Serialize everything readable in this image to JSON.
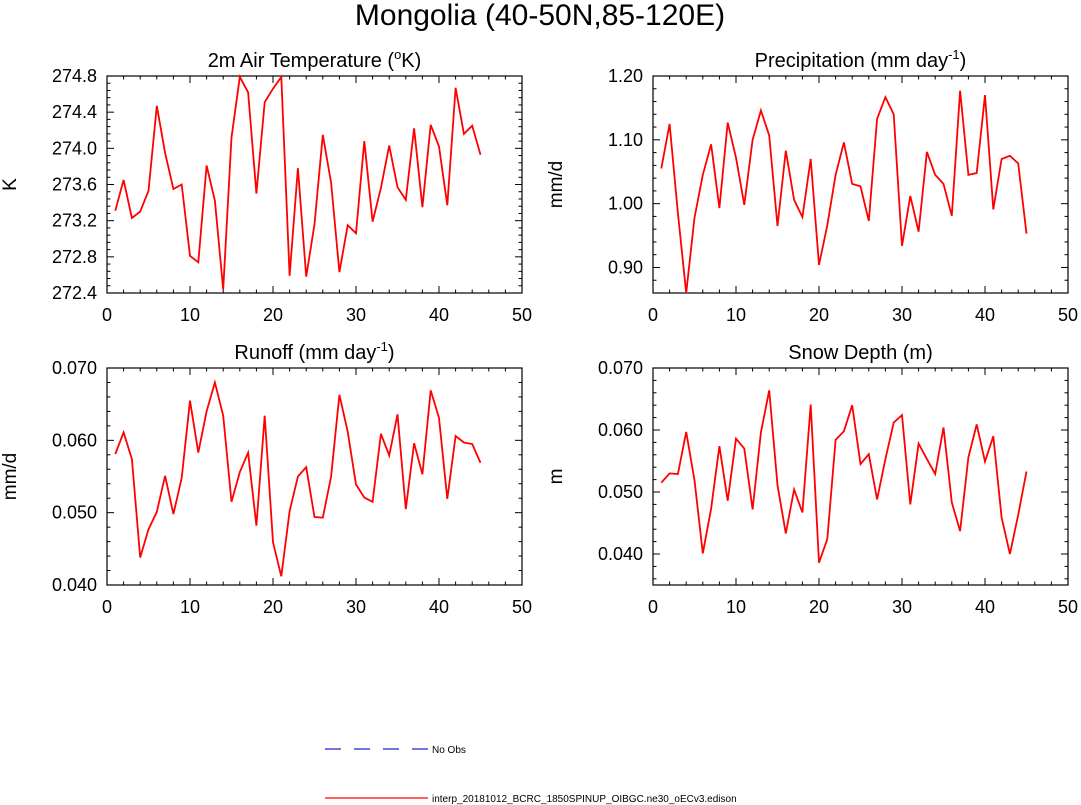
{
  "title": "Mongolia (40-50N,85-120E)",
  "legend": [
    {
      "label": "No Obs",
      "color": "#2020d0",
      "style": "dashed"
    },
    {
      "label": "interp_20181012_BCRC_1850SPINUP_OIBGC.ne30_oECv3.edison",
      "color": "#ff0000",
      "style": "solid"
    }
  ],
  "chart_data": [
    {
      "type": "line",
      "title": "2m Air Temperature (",
      "title_sup": "o",
      "title_tail": "K)",
      "ylabel": "K",
      "xlim": [
        0,
        50
      ],
      "ylim": [
        272.4,
        274.8
      ],
      "xticks": [
        0,
        10,
        20,
        30,
        40,
        50
      ],
      "yticks": [
        272.4,
        272.8,
        273.2,
        273.6,
        274.0,
        274.4,
        274.8
      ],
      "ytick_labels": [
        "272.4",
        "272.8",
        "273.2",
        "273.6",
        "274.0",
        "274.4",
        "274.8"
      ],
      "color": "#ff0000",
      "x": [
        1,
        2,
        3,
        4,
        5,
        6,
        7,
        8,
        9,
        10,
        11,
        12,
        13,
        14,
        15,
        16,
        17,
        18,
        19,
        20,
        21,
        22,
        23,
        24,
        25,
        26,
        27,
        28,
        29,
        30,
        31,
        32,
        33,
        34,
        35,
        36,
        37,
        38,
        39,
        40,
        41,
        42,
        43,
        44,
        45
      ],
      "y": [
        273.31,
        273.65,
        273.23,
        273.3,
        273.53,
        274.47,
        273.95,
        273.55,
        273.6,
        272.81,
        272.74,
        273.81,
        273.42,
        272.44,
        274.12,
        274.79,
        274.62,
        273.5,
        274.51,
        274.66,
        274.79,
        272.59,
        273.78,
        272.58,
        273.16,
        274.15,
        273.62,
        272.63,
        273.15,
        273.06,
        274.08,
        273.19,
        273.56,
        274.03,
        273.57,
        273.43,
        274.22,
        273.35,
        274.26,
        274.02,
        273.37,
        274.67,
        274.16,
        274.25,
        273.93
      ]
    },
    {
      "type": "line",
      "title": "Precipitation (mm day",
      "title_sup": "-1",
      "title_tail": ")",
      "ylabel": "mm/d",
      "xlim": [
        0,
        50
      ],
      "ylim": [
        0.86,
        1.2
      ],
      "xticks": [
        0,
        10,
        20,
        30,
        40,
        50
      ],
      "yticks": [
        0.9,
        1.0,
        1.1,
        1.2
      ],
      "ytick_labels": [
        "0.90",
        "1.00",
        "1.10",
        "1.20"
      ],
      "color": "#ff0000",
      "x": [
        1,
        2,
        3,
        4,
        5,
        6,
        7,
        8,
        9,
        10,
        11,
        12,
        13,
        14,
        15,
        16,
        17,
        18,
        19,
        20,
        21,
        22,
        23,
        24,
        25,
        26,
        27,
        28,
        29,
        30,
        31,
        32,
        33,
        34,
        35,
        36,
        37,
        38,
        39,
        40,
        41,
        42,
        43,
        44,
        45
      ],
      "y": [
        1.055,
        1.125,
        0.985,
        0.86,
        0.978,
        1.045,
        1.093,
        0.993,
        1.127,
        1.072,
        0.998,
        1.1,
        1.146,
        1.107,
        0.965,
        1.083,
        1.006,
        0.979,
        1.07,
        0.904,
        0.966,
        1.045,
        1.096,
        1.031,
        1.027,
        0.973,
        1.133,
        1.167,
        1.14,
        0.934,
        1.012,
        0.956,
        1.081,
        1.045,
        1.031,
        0.981,
        1.177,
        1.045,
        1.048,
        1.17,
        0.991,
        1.07,
        1.075,
        1.063,
        0.953
      ]
    },
    {
      "type": "line",
      "title": "Runoff (mm day",
      "title_sup": "-1",
      "title_tail": ")",
      "ylabel": "mm/d",
      "xlim": [
        0,
        50
      ],
      "ylim": [
        0.04,
        0.07
      ],
      "xticks": [
        0,
        10,
        20,
        30,
        40,
        50
      ],
      "yticks": [
        0.04,
        0.05,
        0.06,
        0.07
      ],
      "ytick_labels": [
        "0.040",
        "0.050",
        "0.060",
        "0.070"
      ],
      "color": "#ff0000",
      "x": [
        1,
        2,
        3,
        4,
        5,
        6,
        7,
        8,
        9,
        10,
        11,
        12,
        13,
        14,
        15,
        16,
        17,
        18,
        19,
        20,
        21,
        22,
        23,
        24,
        25,
        26,
        27,
        28,
        29,
        30,
        31,
        32,
        33,
        34,
        35,
        36,
        37,
        38,
        39,
        40,
        41,
        42,
        43,
        44,
        45
      ],
      "y": [
        0.0581,
        0.0611,
        0.0574,
        0.0438,
        0.0477,
        0.0501,
        0.0551,
        0.0498,
        0.0548,
        0.0655,
        0.0583,
        0.064,
        0.068,
        0.0634,
        0.0515,
        0.0556,
        0.0583,
        0.0482,
        0.0634,
        0.0459,
        0.0412,
        0.0502,
        0.055,
        0.0563,
        0.0494,
        0.0493,
        0.055,
        0.0663,
        0.0612,
        0.0539,
        0.0521,
        0.0515,
        0.0609,
        0.0579,
        0.0636,
        0.0505,
        0.0596,
        0.0553,
        0.0669,
        0.0631,
        0.0519,
        0.0606,
        0.0597,
        0.0595,
        0.0569
      ]
    },
    {
      "type": "line",
      "title": "Snow Depth (m)",
      "title_sup": "",
      "title_tail": "",
      "ylabel": "m",
      "xlim": [
        0,
        50
      ],
      "ylim": [
        0.035,
        0.07
      ],
      "xticks": [
        0,
        10,
        20,
        30,
        40,
        50
      ],
      "yticks": [
        0.04,
        0.05,
        0.06,
        0.07
      ],
      "ytick_labels": [
        "0.040",
        "0.050",
        "0.060",
        "0.070"
      ],
      "color": "#ff0000",
      "x": [
        1,
        2,
        3,
        4,
        5,
        6,
        7,
        8,
        9,
        10,
        11,
        12,
        13,
        14,
        15,
        16,
        17,
        18,
        19,
        20,
        21,
        22,
        23,
        24,
        25,
        26,
        27,
        28,
        29,
        30,
        31,
        32,
        33,
        34,
        35,
        36,
        37,
        38,
        39,
        40,
        41,
        42,
        43,
        44,
        45
      ],
      "y": [
        0.0515,
        0.053,
        0.0529,
        0.0597,
        0.0519,
        0.0401,
        0.0473,
        0.0574,
        0.0486,
        0.0586,
        0.057,
        0.0472,
        0.0596,
        0.0664,
        0.0511,
        0.0433,
        0.0504,
        0.0467,
        0.0641,
        0.0386,
        0.0424,
        0.0584,
        0.0598,
        0.064,
        0.0545,
        0.0561,
        0.0488,
        0.0553,
        0.0612,
        0.0624,
        0.048,
        0.0578,
        0.0553,
        0.0529,
        0.0604,
        0.0483,
        0.0437,
        0.0556,
        0.0609,
        0.0549,
        0.059,
        0.0459,
        0.04,
        0.0463,
        0.0533
      ]
    }
  ]
}
